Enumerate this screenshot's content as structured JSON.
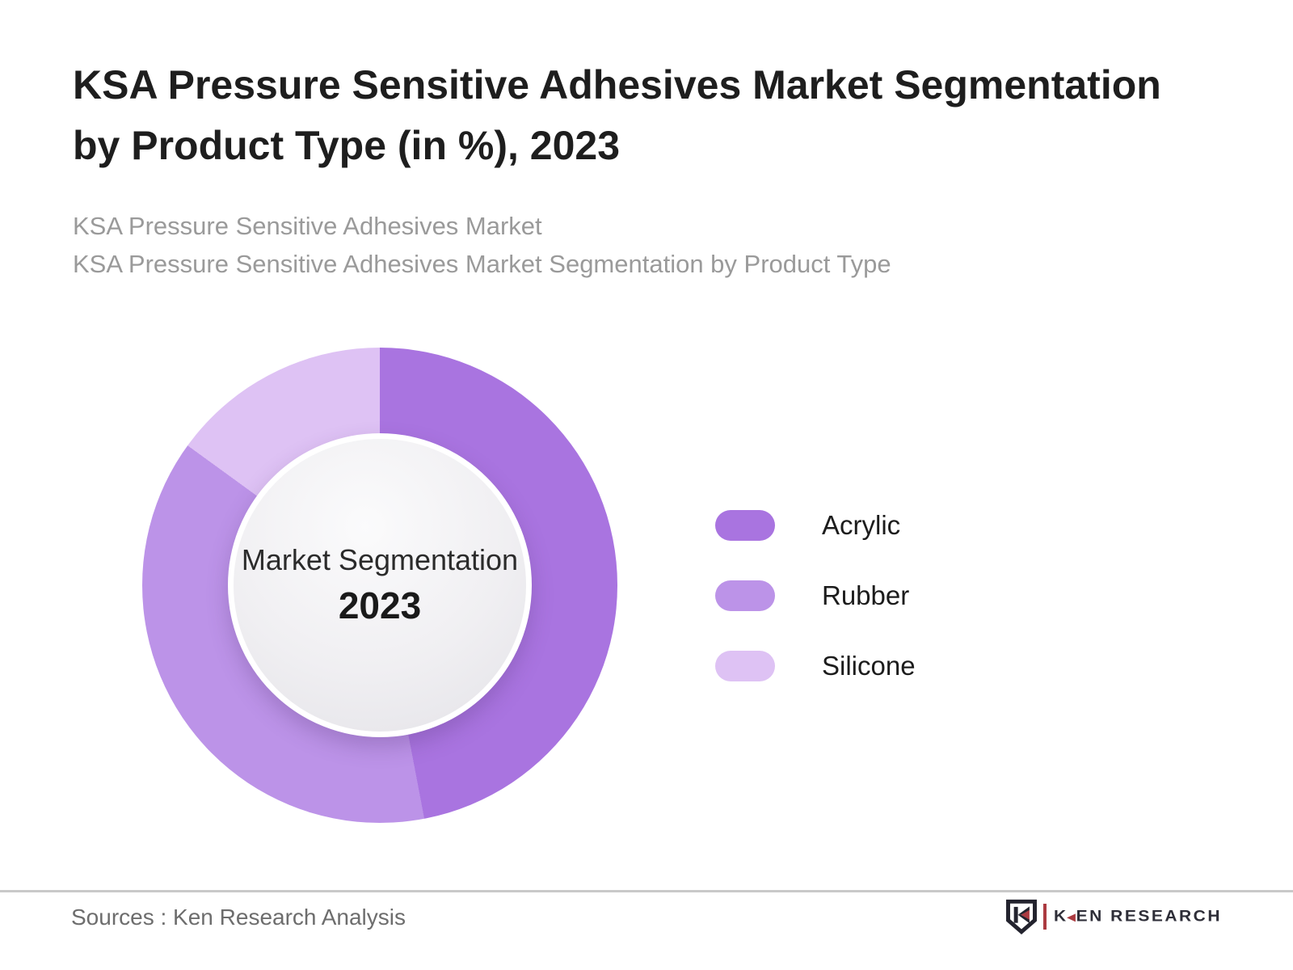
{
  "header": {
    "title_lines": [
      "KSA Pressure Sensitive Adhesives Market Segmentation",
      "by Product Type (in %), 2023"
    ],
    "subtitle_lines": [
      "KSA Pressure Sensitive Adhesives Market",
      "KSA Pressure Sensitive Adhesives Market Segmentation by Product Type"
    ]
  },
  "chart_data": {
    "type": "pie",
    "donut": true,
    "title": "KSA Pressure Sensitive Adhesives Market Segmentation by Product Type (in %), 2023",
    "center_label": "Market Segmentation",
    "center_year": "2023",
    "start_angle_deg": 0,
    "direction": "clockwise",
    "legend_position": "right",
    "segments": [
      {
        "label": "Acrylic",
        "value_pct": 47,
        "color": "#A974E0"
      },
      {
        "label": "Rubber",
        "value_pct": 38,
        "color": "#BC93E8"
      },
      {
        "label": "Silicone",
        "value_pct": 15,
        "color": "#DEC2F4"
      }
    ]
  },
  "footer": {
    "source_text": "Sources : Ken Research Analysis",
    "brand": {
      "k": "K",
      "rest": "EN RESEARCH",
      "accent_color": "#ab3a40",
      "text_color": "#2e2e38"
    }
  }
}
